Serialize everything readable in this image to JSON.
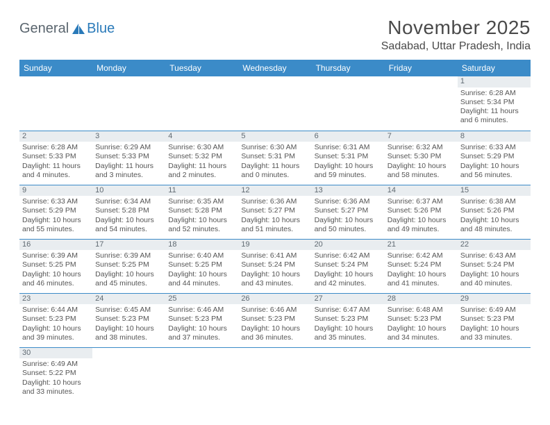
{
  "logo": {
    "text1": "General",
    "text2": "Blue"
  },
  "title": "November 2025",
  "location": "Sadabad, Uttar Pradesh, India",
  "colors": {
    "header_bg": "#3b8bc8",
    "header_fg": "#ffffff",
    "daynum_bg": "#e9edf0",
    "border": "#3b8bc8",
    "text": "#555555",
    "title_color": "#4a4a4a"
  },
  "weekdays": [
    "Sunday",
    "Monday",
    "Tuesday",
    "Wednesday",
    "Thursday",
    "Friday",
    "Saturday"
  ],
  "weeks": [
    [
      null,
      null,
      null,
      null,
      null,
      null,
      {
        "n": "1",
        "sr": "Sunrise: 6:28 AM",
        "ss": "Sunset: 5:34 PM",
        "dl1": "Daylight: 11 hours",
        "dl2": "and 6 minutes."
      }
    ],
    [
      {
        "n": "2",
        "sr": "Sunrise: 6:28 AM",
        "ss": "Sunset: 5:33 PM",
        "dl1": "Daylight: 11 hours",
        "dl2": "and 4 minutes."
      },
      {
        "n": "3",
        "sr": "Sunrise: 6:29 AM",
        "ss": "Sunset: 5:33 PM",
        "dl1": "Daylight: 11 hours",
        "dl2": "and 3 minutes."
      },
      {
        "n": "4",
        "sr": "Sunrise: 6:30 AM",
        "ss": "Sunset: 5:32 PM",
        "dl1": "Daylight: 11 hours",
        "dl2": "and 2 minutes."
      },
      {
        "n": "5",
        "sr": "Sunrise: 6:30 AM",
        "ss": "Sunset: 5:31 PM",
        "dl1": "Daylight: 11 hours",
        "dl2": "and 0 minutes."
      },
      {
        "n": "6",
        "sr": "Sunrise: 6:31 AM",
        "ss": "Sunset: 5:31 PM",
        "dl1": "Daylight: 10 hours",
        "dl2": "and 59 minutes."
      },
      {
        "n": "7",
        "sr": "Sunrise: 6:32 AM",
        "ss": "Sunset: 5:30 PM",
        "dl1": "Daylight: 10 hours",
        "dl2": "and 58 minutes."
      },
      {
        "n": "8",
        "sr": "Sunrise: 6:33 AM",
        "ss": "Sunset: 5:29 PM",
        "dl1": "Daylight: 10 hours",
        "dl2": "and 56 minutes."
      }
    ],
    [
      {
        "n": "9",
        "sr": "Sunrise: 6:33 AM",
        "ss": "Sunset: 5:29 PM",
        "dl1": "Daylight: 10 hours",
        "dl2": "and 55 minutes."
      },
      {
        "n": "10",
        "sr": "Sunrise: 6:34 AM",
        "ss": "Sunset: 5:28 PM",
        "dl1": "Daylight: 10 hours",
        "dl2": "and 54 minutes."
      },
      {
        "n": "11",
        "sr": "Sunrise: 6:35 AM",
        "ss": "Sunset: 5:28 PM",
        "dl1": "Daylight: 10 hours",
        "dl2": "and 52 minutes."
      },
      {
        "n": "12",
        "sr": "Sunrise: 6:36 AM",
        "ss": "Sunset: 5:27 PM",
        "dl1": "Daylight: 10 hours",
        "dl2": "and 51 minutes."
      },
      {
        "n": "13",
        "sr": "Sunrise: 6:36 AM",
        "ss": "Sunset: 5:27 PM",
        "dl1": "Daylight: 10 hours",
        "dl2": "and 50 minutes."
      },
      {
        "n": "14",
        "sr": "Sunrise: 6:37 AM",
        "ss": "Sunset: 5:26 PM",
        "dl1": "Daylight: 10 hours",
        "dl2": "and 49 minutes."
      },
      {
        "n": "15",
        "sr": "Sunrise: 6:38 AM",
        "ss": "Sunset: 5:26 PM",
        "dl1": "Daylight: 10 hours",
        "dl2": "and 48 minutes."
      }
    ],
    [
      {
        "n": "16",
        "sr": "Sunrise: 6:39 AM",
        "ss": "Sunset: 5:25 PM",
        "dl1": "Daylight: 10 hours",
        "dl2": "and 46 minutes."
      },
      {
        "n": "17",
        "sr": "Sunrise: 6:39 AM",
        "ss": "Sunset: 5:25 PM",
        "dl1": "Daylight: 10 hours",
        "dl2": "and 45 minutes."
      },
      {
        "n": "18",
        "sr": "Sunrise: 6:40 AM",
        "ss": "Sunset: 5:25 PM",
        "dl1": "Daylight: 10 hours",
        "dl2": "and 44 minutes."
      },
      {
        "n": "19",
        "sr": "Sunrise: 6:41 AM",
        "ss": "Sunset: 5:24 PM",
        "dl1": "Daylight: 10 hours",
        "dl2": "and 43 minutes."
      },
      {
        "n": "20",
        "sr": "Sunrise: 6:42 AM",
        "ss": "Sunset: 5:24 PM",
        "dl1": "Daylight: 10 hours",
        "dl2": "and 42 minutes."
      },
      {
        "n": "21",
        "sr": "Sunrise: 6:42 AM",
        "ss": "Sunset: 5:24 PM",
        "dl1": "Daylight: 10 hours",
        "dl2": "and 41 minutes."
      },
      {
        "n": "22",
        "sr": "Sunrise: 6:43 AM",
        "ss": "Sunset: 5:24 PM",
        "dl1": "Daylight: 10 hours",
        "dl2": "and 40 minutes."
      }
    ],
    [
      {
        "n": "23",
        "sr": "Sunrise: 6:44 AM",
        "ss": "Sunset: 5:23 PM",
        "dl1": "Daylight: 10 hours",
        "dl2": "and 39 minutes."
      },
      {
        "n": "24",
        "sr": "Sunrise: 6:45 AM",
        "ss": "Sunset: 5:23 PM",
        "dl1": "Daylight: 10 hours",
        "dl2": "and 38 minutes."
      },
      {
        "n": "25",
        "sr": "Sunrise: 6:46 AM",
        "ss": "Sunset: 5:23 PM",
        "dl1": "Daylight: 10 hours",
        "dl2": "and 37 minutes."
      },
      {
        "n": "26",
        "sr": "Sunrise: 6:46 AM",
        "ss": "Sunset: 5:23 PM",
        "dl1": "Daylight: 10 hours",
        "dl2": "and 36 minutes."
      },
      {
        "n": "27",
        "sr": "Sunrise: 6:47 AM",
        "ss": "Sunset: 5:23 PM",
        "dl1": "Daylight: 10 hours",
        "dl2": "and 35 minutes."
      },
      {
        "n": "28",
        "sr": "Sunrise: 6:48 AM",
        "ss": "Sunset: 5:23 PM",
        "dl1": "Daylight: 10 hours",
        "dl2": "and 34 minutes."
      },
      {
        "n": "29",
        "sr": "Sunrise: 6:49 AM",
        "ss": "Sunset: 5:23 PM",
        "dl1": "Daylight: 10 hours",
        "dl2": "and 33 minutes."
      }
    ],
    [
      {
        "n": "30",
        "sr": "Sunrise: 6:49 AM",
        "ss": "Sunset: 5:22 PM",
        "dl1": "Daylight: 10 hours",
        "dl2": "and 33 minutes."
      },
      null,
      null,
      null,
      null,
      null,
      null
    ]
  ]
}
